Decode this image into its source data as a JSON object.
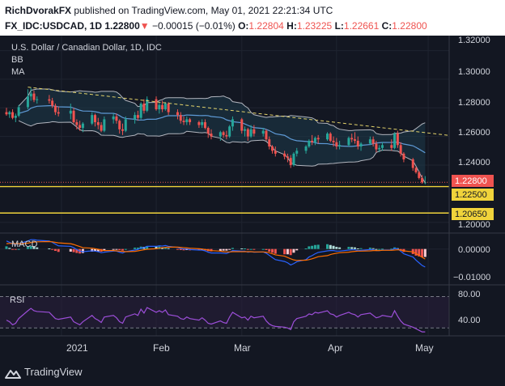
{
  "header": {
    "author": "RichDvorakFX",
    "published_text": "published on TradingView.com, May 01, 2021 22:21:34 UTC",
    "symbol": "FX_IDC:USDCAD, 1D",
    "last": "1.22800",
    "change_arrow": "▼",
    "change": "−0.00015 (−0.01%)",
    "o_label": "O:",
    "o": "1.22804",
    "h_label": "H:",
    "h": "1.23225",
    "l_label": "L:",
    "l": "1.22661",
    "c_label": "C:",
    "c": "1.22800"
  },
  "legend": {
    "title": "U.S. Dollar / Canadian Dollar, 1D, IDC",
    "bb": "BB",
    "ma": "MA"
  },
  "price_axis": {
    "ticks": [
      "1.32000",
      "1.30000",
      "1.28000",
      "1.26000",
      "1.24000",
      "1.20000"
    ],
    "last_label": "1.22800",
    "level1_label": "1.22500",
    "level2_label": "1.20650"
  },
  "macd": {
    "label": "MACD",
    "ticks": [
      "0.00000",
      "−0.01000"
    ]
  },
  "rsi": {
    "label": "RSI",
    "ticks": [
      "80.00",
      "40.00"
    ]
  },
  "time_axis": {
    "labels": [
      "2021",
      "Feb",
      "Mar",
      "Apr",
      "May"
    ]
  },
  "footer": {
    "brand": "TradingView"
  },
  "colors": {
    "background": "#131722",
    "up": "#26a69a",
    "down": "#ef5350",
    "level_line": "#f0d33b",
    "trendline": "#e3d36b",
    "ma": "#5e9ad6",
    "bands": "#b2b5be",
    "rsi": "#9c4ed8",
    "macd_line": "#2962ff",
    "signal_line": "#ff6d00"
  },
  "chart_data": [
    {
      "type": "candlestick",
      "title": "U.S. Dollar / Canadian Dollar, 1D, IDC",
      "x": [
        "2020-12-14",
        "2020-12-15",
        "2020-12-16",
        "2020-12-17",
        "2020-12-18",
        "2020-12-21",
        "2020-12-22",
        "2020-12-23",
        "2020-12-24",
        "2020-12-28",
        "2020-12-29",
        "2020-12-30",
        "2020-12-31",
        "2021-01-04",
        "2021-01-05",
        "2021-01-06",
        "2021-01-07",
        "2021-01-08",
        "2021-01-11",
        "2021-01-12",
        "2021-01-13",
        "2021-01-14",
        "2021-01-15",
        "2021-01-18",
        "2021-01-19",
        "2021-01-20",
        "2021-01-21",
        "2021-01-22",
        "2021-01-25",
        "2021-01-26",
        "2021-01-27",
        "2021-01-28",
        "2021-01-29",
        "2021-02-01",
        "2021-02-02",
        "2021-02-03",
        "2021-02-04",
        "2021-02-05",
        "2021-02-08",
        "2021-02-09",
        "2021-02-10",
        "2021-02-11",
        "2021-02-12",
        "2021-02-15",
        "2021-02-16",
        "2021-02-17",
        "2021-02-18",
        "2021-02-19",
        "2021-02-22",
        "2021-02-23",
        "2021-02-24",
        "2021-02-25",
        "2021-02-26",
        "2021-03-01",
        "2021-03-02",
        "2021-03-03",
        "2021-03-04",
        "2021-03-05",
        "2021-03-08",
        "2021-03-09",
        "2021-03-10",
        "2021-03-11",
        "2021-03-12",
        "2021-03-15",
        "2021-03-16",
        "2021-03-17",
        "2021-03-18",
        "2021-03-19",
        "2021-03-22",
        "2021-03-23",
        "2021-03-24",
        "2021-03-25",
        "2021-03-26",
        "2021-03-29",
        "2021-03-30",
        "2021-03-31",
        "2021-04-01",
        "2021-04-02",
        "2021-04-05",
        "2021-04-06",
        "2021-04-07",
        "2021-04-08",
        "2021-04-09",
        "2021-04-12",
        "2021-04-13",
        "2021-04-14",
        "2021-04-15",
        "2021-04-16",
        "2021-04-19",
        "2021-04-20",
        "2021-04-21",
        "2021-04-22",
        "2021-04-23",
        "2021-04-26",
        "2021-04-27",
        "2021-04-28",
        "2021-04-29",
        "2021-04-30"
      ],
      "ohlc": [
        [
          1.277,
          1.28,
          1.2745,
          1.2755
        ],
        [
          1.2755,
          1.278,
          1.273,
          1.277
        ],
        [
          1.277,
          1.279,
          1.272,
          1.273
        ],
        [
          1.273,
          1.276,
          1.27,
          1.2745
        ],
        [
          1.2745,
          1.282,
          1.2735,
          1.2805
        ],
        [
          1.2805,
          1.293,
          1.279,
          1.288
        ],
        [
          1.288,
          1.294,
          1.285,
          1.29
        ],
        [
          1.29,
          1.292,
          1.284,
          1.2855
        ],
        [
          1.2855,
          1.288,
          1.283,
          1.286
        ],
        [
          1.286,
          1.289,
          1.283,
          1.285
        ],
        [
          1.285,
          1.287,
          1.28,
          1.2815
        ],
        [
          1.2815,
          1.283,
          1.275,
          1.277
        ],
        [
          1.277,
          1.281,
          1.274,
          1.276
        ],
        [
          1.276,
          1.283,
          1.272,
          1.278
        ],
        [
          1.278,
          1.28,
          1.269,
          1.27
        ],
        [
          1.27,
          1.272,
          1.265,
          1.268
        ],
        [
          1.268,
          1.271,
          1.264,
          1.266
        ],
        [
          1.266,
          1.27,
          1.263,
          1.269
        ],
        [
          1.269,
          1.277,
          1.268,
          1.275
        ],
        [
          1.275,
          1.276,
          1.267,
          1.27
        ],
        [
          1.27,
          1.273,
          1.265,
          1.268
        ],
        [
          1.268,
          1.27,
          1.263,
          1.264
        ],
        [
          1.264,
          1.274,
          1.263,
          1.272
        ],
        [
          1.272,
          1.276,
          1.269,
          1.274
        ],
        [
          1.274,
          1.276,
          1.269,
          1.271
        ],
        [
          1.271,
          1.272,
          1.262,
          1.265
        ],
        [
          1.265,
          1.269,
          1.261,
          1.264
        ],
        [
          1.264,
          1.274,
          1.263,
          1.272
        ],
        [
          1.272,
          1.277,
          1.269,
          1.275
        ],
        [
          1.275,
          1.278,
          1.271,
          1.273
        ],
        [
          1.273,
          1.284,
          1.272,
          1.283
        ],
        [
          1.283,
          1.286,
          1.276,
          1.278
        ],
        [
          1.278,
          1.288,
          1.277,
          1.286
        ],
        [
          1.286,
          1.288,
          1.278,
          1.279
        ],
        [
          1.279,
          1.284,
          1.276,
          1.282
        ],
        [
          1.282,
          1.285,
          1.277,
          1.279
        ],
        [
          1.279,
          1.284,
          1.278,
          1.283
        ],
        [
          1.283,
          1.284,
          1.275,
          1.277
        ],
        [
          1.277,
          1.279,
          1.272,
          1.275
        ],
        [
          1.275,
          1.277,
          1.269,
          1.271
        ],
        [
          1.271,
          1.274,
          1.268,
          1.27
        ],
        [
          1.27,
          1.274,
          1.268,
          1.272
        ],
        [
          1.272,
          1.273,
          1.268,
          1.27
        ],
        [
          1.27,
          1.271,
          1.266,
          1.268
        ],
        [
          1.268,
          1.272,
          1.266,
          1.27
        ],
        [
          1.27,
          1.272,
          1.265,
          1.266
        ],
        [
          1.266,
          1.267,
          1.259,
          1.262
        ],
        [
          1.262,
          1.265,
          1.258,
          1.26
        ],
        [
          1.26,
          1.264,
          1.257,
          1.263
        ],
        [
          1.263,
          1.264,
          1.259,
          1.261
        ],
        [
          1.261,
          1.264,
          1.258,
          1.26
        ],
        [
          1.26,
          1.268,
          1.259,
          1.267
        ],
        [
          1.267,
          1.274,
          1.264,
          1.272
        ],
        [
          1.272,
          1.273,
          1.262,
          1.264
        ],
        [
          1.264,
          1.267,
          1.26,
          1.265
        ],
        [
          1.265,
          1.266,
          1.257,
          1.26
        ],
        [
          1.26,
          1.268,
          1.259,
          1.265
        ],
        [
          1.265,
          1.268,
          1.26,
          1.262
        ],
        [
          1.262,
          1.266,
          1.26,
          1.264
        ],
        [
          1.264,
          1.265,
          1.257,
          1.258
        ],
        [
          1.258,
          1.26,
          1.251,
          1.253
        ],
        [
          1.253,
          1.254,
          1.248,
          1.25
        ],
        [
          1.25,
          1.253,
          1.246,
          1.248
        ],
        [
          1.248,
          1.25,
          1.244,
          1.246
        ],
        [
          1.246,
          1.248,
          1.242,
          1.245
        ],
        [
          1.245,
          1.247,
          1.238,
          1.24
        ],
        [
          1.24,
          1.249,
          1.239,
          1.248
        ],
        [
          1.248,
          1.252,
          1.246,
          1.25
        ],
        [
          1.25,
          1.254,
          1.248,
          1.253
        ],
        [
          1.253,
          1.258,
          1.252,
          1.257
        ],
        [
          1.257,
          1.261,
          1.254,
          1.256
        ],
        [
          1.256,
          1.26,
          1.254,
          1.259
        ],
        [
          1.259,
          1.261,
          1.255,
          1.258
        ],
        [
          1.258,
          1.263,
          1.257,
          1.262
        ],
        [
          1.262,
          1.263,
          1.256,
          1.257
        ],
        [
          1.257,
          1.26,
          1.253,
          1.256
        ],
        [
          1.256,
          1.259,
          1.251,
          1.253
        ],
        [
          1.253,
          1.257,
          1.251,
          1.254
        ],
        [
          1.254,
          1.26,
          1.253,
          1.259
        ],
        [
          1.259,
          1.262,
          1.256,
          1.258
        ],
        [
          1.258,
          1.263,
          1.255,
          1.257
        ],
        [
          1.257,
          1.26,
          1.251,
          1.253
        ],
        [
          1.253,
          1.256,
          1.25,
          1.255
        ],
        [
          1.255,
          1.26,
          1.254,
          1.258
        ],
        [
          1.258,
          1.26,
          1.253,
          1.255
        ],
        [
          1.255,
          1.257,
          1.249,
          1.251
        ],
        [
          1.251,
          1.254,
          1.249,
          1.252
        ],
        [
          1.252,
          1.256,
          1.25,
          1.254
        ],
        [
          1.254,
          1.258,
          1.25,
          1.252
        ],
        [
          1.252,
          1.263,
          1.251,
          1.262
        ],
        [
          1.262,
          1.264,
          1.252,
          1.254
        ],
        [
          1.254,
          1.256,
          1.246,
          1.248
        ],
        [
          1.248,
          1.249,
          1.242,
          1.244
        ],
        [
          1.244,
          1.245,
          1.236,
          1.238
        ],
        [
          1.238,
          1.239,
          1.234,
          1.235
        ],
        [
          1.235,
          1.236,
          1.23,
          1.231
        ],
        [
          1.231,
          1.233,
          1.227,
          1.228
        ],
        [
          1.228,
          1.2323,
          1.2266,
          1.228
        ]
      ],
      "levels": [
        1.225,
        1.2065
      ],
      "last": 1.228,
      "trendline": [
        [
          "2020-12-21",
          1.2945
        ],
        [
          "2021-04-30",
          1.2607
        ]
      ],
      "ylim": [
        1.1925,
        1.3305
      ]
    },
    {
      "type": "histogram",
      "title": "MACD",
      "x_ref": "dates of the price chart",
      "macd": [
        0.003,
        0.0025,
        0.002,
        0.0018,
        0.002,
        0.003,
        0.0035,
        0.0035,
        0.0033,
        0.003,
        0.0025,
        0.0018,
        0.0012,
        0.001,
        0.0005,
        -0.0002,
        -0.0008,
        -0.001,
        -0.0007,
        -0.0008,
        -0.001,
        -0.0014,
        -0.0012,
        -0.0008,
        -0.0008,
        -0.0012,
        -0.0015,
        -0.001,
        -0.0004,
        -0.0002,
        0.0004,
        0.0005,
        0.001,
        0.001,
        0.0012,
        0.0011,
        0.0013,
        0.001,
        0.0006,
        0.0002,
        0.0,
        0.0,
        -0.0002,
        -0.0004,
        -0.0004,
        -0.0007,
        -0.0012,
        -0.0015,
        -0.0015,
        -0.0016,
        -0.0017,
        -0.0012,
        -0.0006,
        -0.0008,
        -0.0008,
        -0.0012,
        -0.001,
        -0.0012,
        -0.0011,
        -0.0016,
        -0.0024,
        -0.0032,
        -0.004,
        -0.0047,
        -0.0052,
        -0.006,
        -0.0055,
        -0.0048,
        -0.004,
        -0.003,
        -0.0025,
        -0.0018,
        -0.0013,
        -0.0007,
        -0.0006,
        -0.0006,
        -0.0008,
        -0.0008,
        -0.0004,
        -0.0003,
        -0.0003,
        -0.0006,
        -0.0005,
        -0.0002,
        -0.0003,
        -0.0006,
        -0.0006,
        -0.0004,
        -0.0004,
        0.0002,
        0.0,
        -0.0008,
        -0.0018,
        -0.003,
        -0.0042,
        -0.0052,
        -0.0062,
        -0.0068
      ],
      "signal": [
        0.002,
        0.0021,
        0.0021,
        0.002,
        0.002,
        0.0022,
        0.0024,
        0.0026,
        0.0027,
        0.0028,
        0.0027,
        0.0025,
        0.0023,
        0.002,
        0.0017,
        0.0013,
        0.0009,
        0.0005,
        0.0003,
        0.0001,
        -0.0001,
        -0.0004,
        -0.0006,
        -0.0006,
        -0.0007,
        -0.0008,
        -0.0009,
        -0.001,
        -0.0009,
        -0.0007,
        -0.0005,
        -0.0003,
        -0.0001,
        0.0001,
        0.0003,
        0.0005,
        0.0006,
        0.0007,
        0.0007,
        0.0006,
        0.0005,
        0.0004,
        0.0003,
        0.0001,
        0.0,
        -0.0002,
        -0.0004,
        -0.0006,
        -0.0008,
        -0.001,
        -0.0011,
        -0.0011,
        -0.001,
        -0.001,
        -0.001,
        -0.001,
        -0.001,
        -0.0011,
        -0.0011,
        -0.0012,
        -0.0014,
        -0.0018,
        -0.0022,
        -0.0027,
        -0.0032,
        -0.0037,
        -0.0041,
        -0.0043,
        -0.0042,
        -0.004,
        -0.0037,
        -0.0033,
        -0.0029,
        -0.0025,
        -0.0021,
        -0.0018,
        -0.0016,
        -0.0014,
        -0.0012,
        -0.001,
        -0.0009,
        -0.0008,
        -0.0008,
        -0.0007,
        -0.0006,
        -0.0006,
        -0.0006,
        -0.0005,
        -0.0005,
        -0.0004,
        -0.0003,
        -0.0004,
        -0.0007,
        -0.0011,
        -0.0017,
        -0.0024,
        -0.0031,
        -0.0038
      ],
      "ylim": [
        -0.0135,
        0.006
      ]
    },
    {
      "type": "line",
      "title": "RSI",
      "x_ref": "dates of the price chart",
      "values": [
        40,
        38,
        34,
        36,
        42,
        52,
        55,
        52,
        51,
        50,
        46,
        42,
        41,
        44,
        38,
        36,
        34,
        38,
        46,
        42,
        40,
        37,
        44,
        46,
        43,
        38,
        36,
        44,
        48,
        46,
        54,
        49,
        56,
        50,
        52,
        50,
        53,
        47,
        45,
        42,
        41,
        44,
        42,
        40,
        43,
        40,
        36,
        35,
        39,
        37,
        36,
        44,
        50,
        43,
        44,
        40,
        45,
        43,
        45,
        39,
        35,
        33,
        32,
        31,
        30,
        28,
        38,
        42,
        45,
        48,
        47,
        50,
        49,
        52,
        48,
        47,
        44,
        46,
        50,
        48,
        47,
        44,
        47,
        49,
        46,
        43,
        44,
        46,
        44,
        52,
        45,
        39,
        35,
        31,
        29,
        27,
        25,
        25
      ],
      "ylim": [
        20,
        85
      ],
      "bands": [
        70,
        30
      ]
    }
  ]
}
